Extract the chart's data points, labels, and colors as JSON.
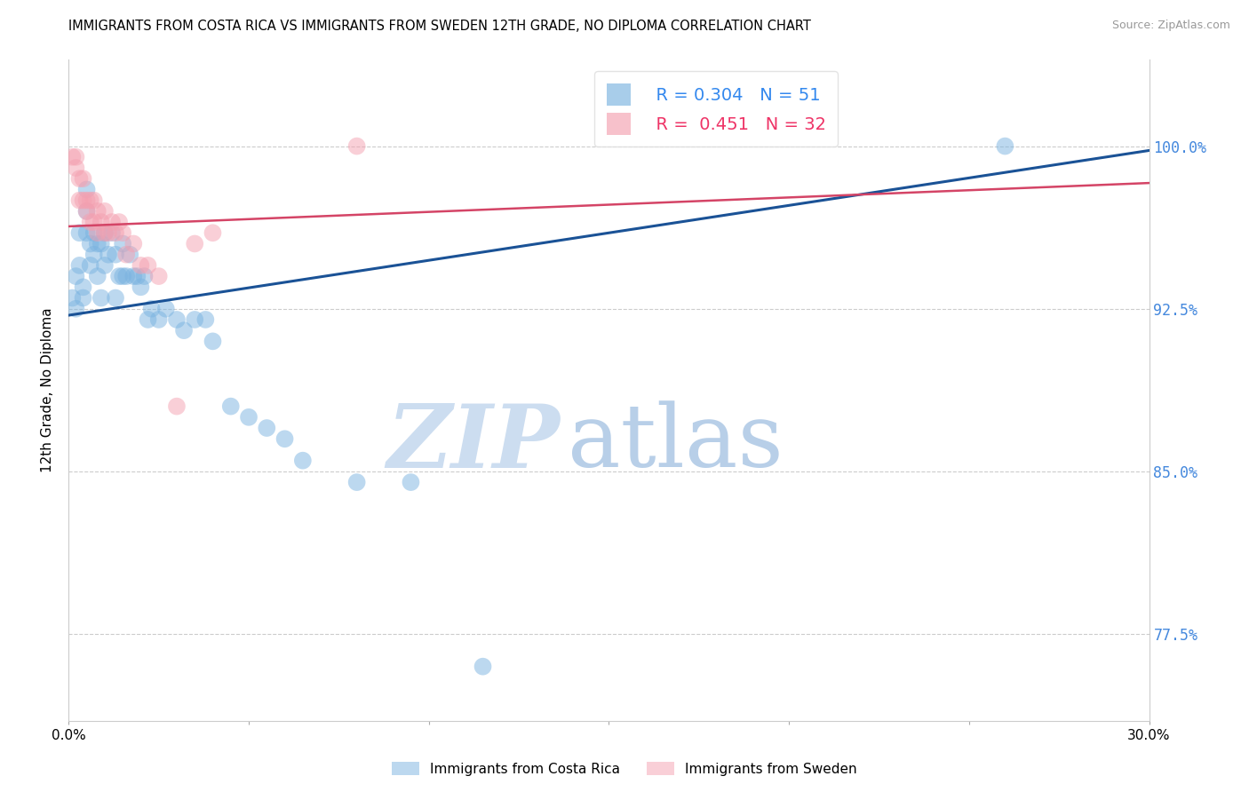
{
  "title": "IMMIGRANTS FROM COSTA RICA VS IMMIGRANTS FROM SWEDEN 12TH GRADE, NO DIPLOMA CORRELATION CHART",
  "source": "Source: ZipAtlas.com",
  "ylabel": "12th Grade, No Diploma",
  "ytick_labels": [
    "100.0%",
    "92.5%",
    "85.0%",
    "77.5%"
  ],
  "ytick_values": [
    1.0,
    0.925,
    0.85,
    0.775
  ],
  "xmin": 0.0,
  "xmax": 0.3,
  "ymin": 0.735,
  "ymax": 1.04,
  "legend_blue_r": "0.304",
  "legend_blue_n": "51",
  "legend_pink_r": "0.451",
  "legend_pink_n": "32",
  "blue_color": "#7ab3e0",
  "pink_color": "#f4a0b0",
  "blue_line_color": "#1a5296",
  "pink_line_color": "#d44466",
  "blue_scatter_x": [
    0.001,
    0.002,
    0.002,
    0.003,
    0.003,
    0.004,
    0.004,
    0.005,
    0.005,
    0.005,
    0.006,
    0.006,
    0.007,
    0.007,
    0.008,
    0.008,
    0.009,
    0.009,
    0.01,
    0.01,
    0.011,
    0.012,
    0.013,
    0.013,
    0.014,
    0.015,
    0.015,
    0.016,
    0.017,
    0.018,
    0.019,
    0.02,
    0.021,
    0.022,
    0.023,
    0.025,
    0.027,
    0.03,
    0.032,
    0.035,
    0.038,
    0.04,
    0.045,
    0.05,
    0.055,
    0.06,
    0.065,
    0.08,
    0.095,
    0.115,
    0.26
  ],
  "blue_scatter_y": [
    0.93,
    0.94,
    0.925,
    0.945,
    0.96,
    0.93,
    0.935,
    0.96,
    0.97,
    0.98,
    0.955,
    0.945,
    0.96,
    0.95,
    0.955,
    0.94,
    0.955,
    0.93,
    0.96,
    0.945,
    0.95,
    0.96,
    0.95,
    0.93,
    0.94,
    0.94,
    0.955,
    0.94,
    0.95,
    0.94,
    0.94,
    0.935,
    0.94,
    0.92,
    0.925,
    0.92,
    0.925,
    0.92,
    0.915,
    0.92,
    0.92,
    0.91,
    0.88,
    0.875,
    0.87,
    0.865,
    0.855,
    0.845,
    0.845,
    0.76,
    1.0
  ],
  "pink_scatter_x": [
    0.001,
    0.002,
    0.002,
    0.003,
    0.003,
    0.004,
    0.004,
    0.005,
    0.005,
    0.006,
    0.006,
    0.007,
    0.007,
    0.008,
    0.008,
    0.009,
    0.01,
    0.01,
    0.011,
    0.012,
    0.013,
    0.014,
    0.015,
    0.016,
    0.018,
    0.02,
    0.022,
    0.025,
    0.03,
    0.035,
    0.04,
    0.08
  ],
  "pink_scatter_y": [
    0.995,
    0.995,
    0.99,
    0.985,
    0.975,
    0.985,
    0.975,
    0.975,
    0.97,
    0.975,
    0.965,
    0.975,
    0.965,
    0.97,
    0.96,
    0.965,
    0.96,
    0.97,
    0.96,
    0.965,
    0.96,
    0.965,
    0.96,
    0.95,
    0.955,
    0.945,
    0.945,
    0.94,
    0.88,
    0.955,
    0.96,
    1.0
  ],
  "blue_line_x": [
    0.0,
    0.3
  ],
  "blue_line_y": [
    0.922,
    0.998
  ],
  "pink_line_x": [
    0.0,
    0.3
  ],
  "pink_line_y": [
    0.963,
    0.983
  ]
}
